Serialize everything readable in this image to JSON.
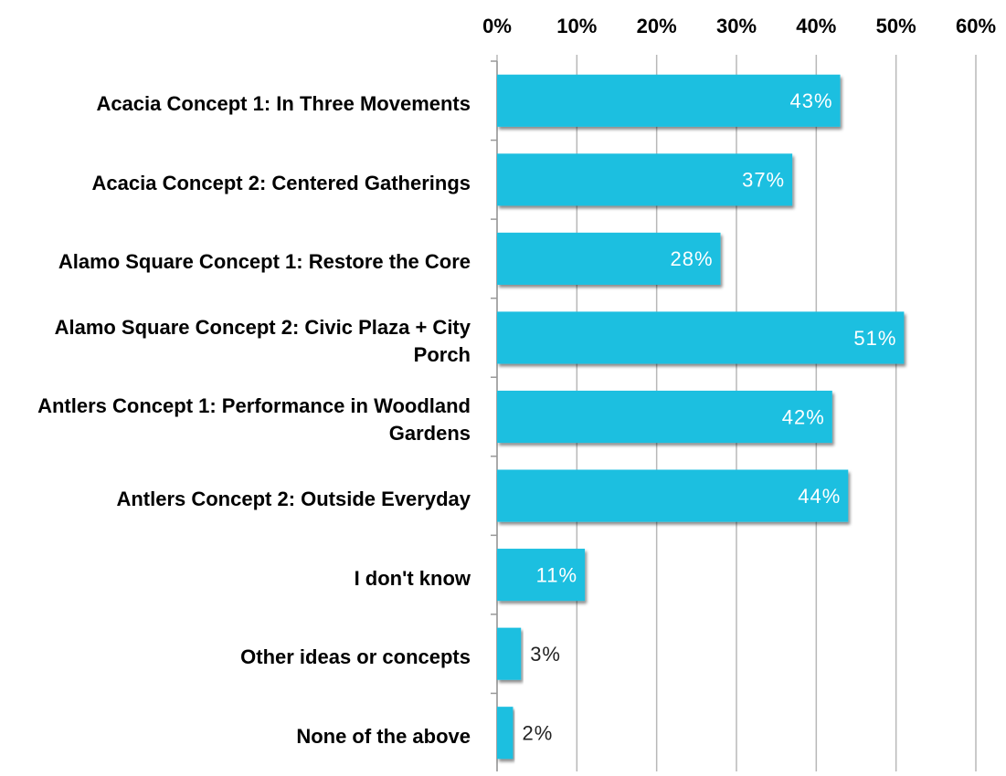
{
  "chart_data": {
    "type": "bar",
    "orientation": "horizontal",
    "categories": [
      "Acacia Concept 1: In Three Movements",
      "Acacia Concept 2: Centered Gatherings",
      "Alamo Square Concept 1: Restore the Core",
      "Alamo Square Concept 2: Civic Plaza + City Porch",
      "Antlers Concept 1: Performance in Woodland Gardens",
      "Antlers Concept 2: Outside Everyday",
      "I don't know",
      "Other ideas or concepts",
      "None of the above"
    ],
    "values": [
      43,
      37,
      28,
      51,
      42,
      44,
      11,
      3,
      2
    ],
    "value_labels": [
      "43%",
      "37%",
      "28%",
      "51%",
      "42%",
      "44%",
      "11%",
      "3%",
      "2%"
    ],
    "color": "#1fbfe0",
    "xlim": [
      0,
      60
    ],
    "xticks": [
      {
        "value": 0,
        "label": "0%"
      },
      {
        "value": 10,
        "label": "10%"
      },
      {
        "value": 20,
        "label": "20%"
      },
      {
        "value": 30,
        "label": "30%"
      },
      {
        "value": 40,
        "label": "40%"
      },
      {
        "value": 50,
        "label": "50%"
      },
      {
        "value": 60,
        "label": "60%"
      }
    ],
    "grid": true
  }
}
